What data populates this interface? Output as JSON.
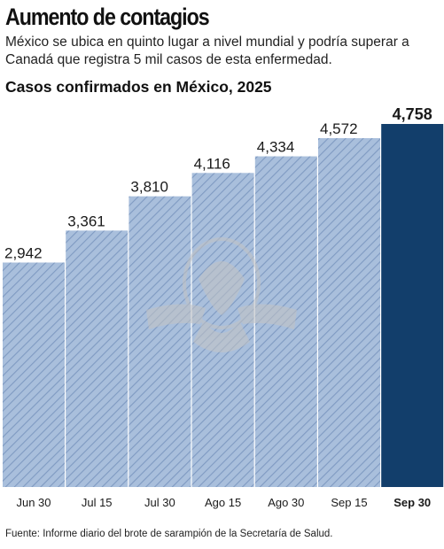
{
  "header": {
    "title": "Aumento de contagios",
    "subtitle": "México se ubica en quinto lugar a nivel mundial y podría superar a Canadá que registra 5 mil casos de esta enfermedad."
  },
  "footer": {
    "source": "Fuente: Informe diario del brote de sarampión de la Secretaría de Salud."
  },
  "colors": {
    "bar_fill": "#a9bfdc",
    "bar_hatch": "#7f9ac2",
    "highlight_bar": "#123e6b",
    "emblem": "#c4c4c4"
  },
  "icons": {
    "watermark": "eagle-seal-icon"
  },
  "chart_data": {
    "type": "bar",
    "title": "Casos confirmados en México, 2025",
    "categories": [
      "Jun 30",
      "Jul 15",
      "Jul 30",
      "Ago 15",
      "Ago 30",
      "Sep 15",
      "Sep 30"
    ],
    "values": [
      2942,
      3361,
      3810,
      4116,
      4334,
      4572,
      4758
    ],
    "value_labels": [
      "2,942",
      "3,361",
      "3,810",
      "4,116",
      "4,334",
      "4,572",
      "4,758"
    ],
    "highlight_index": 6,
    "ylim": [
      0,
      4758
    ],
    "grid": false,
    "legend": "none"
  }
}
